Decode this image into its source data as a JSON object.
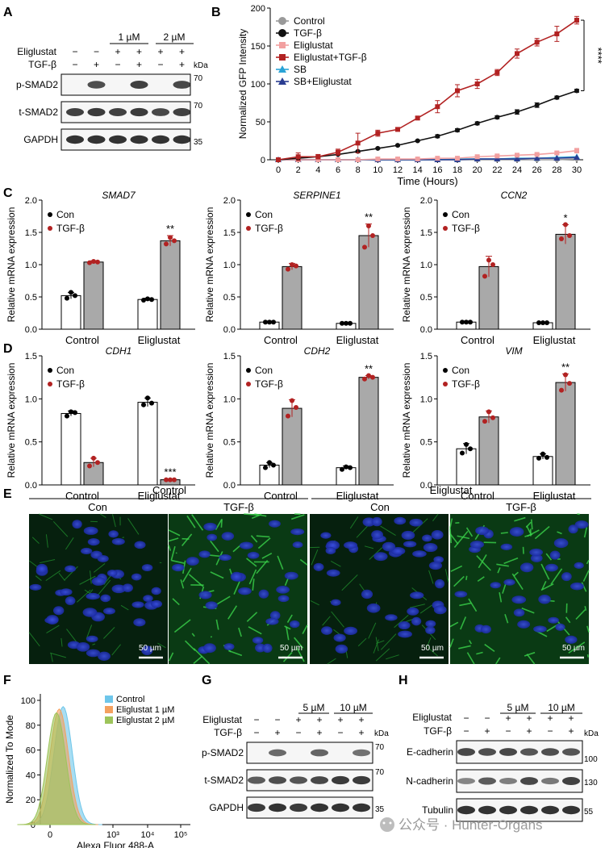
{
  "panel_letters": [
    "A",
    "B",
    "C",
    "D",
    "E",
    "F",
    "G",
    "H"
  ],
  "units": {
    "kda": "kDa",
    "scalebar": "50 µm"
  },
  "panelA": {
    "conc": [
      "1 µM",
      "2 µM"
    ],
    "row_labels": [
      "Eliglustat",
      "TGF-β"
    ],
    "eli_signs": [
      "−",
      "−",
      "+",
      "+",
      "+",
      "+"
    ],
    "tgf_signs": [
      "−",
      "+",
      "−",
      "+",
      "−",
      "+"
    ],
    "bands": [
      "p-SMAD2",
      "t-SMAD2",
      "GAPDH"
    ],
    "markers": [
      "70",
      "70",
      "35"
    ]
  },
  "panelG": {
    "conc": [
      "5 µM",
      "10 µM"
    ],
    "row_labels": [
      "Eliglustat",
      "TGF-β"
    ],
    "eli_signs": [
      "−",
      "−",
      "+",
      "+",
      "+",
      "+"
    ],
    "tgf_signs": [
      "−",
      "+",
      "−",
      "+",
      "−",
      "+"
    ],
    "bands": [
      "p-SMAD2",
      "t-SMAD2",
      "GAPDH"
    ],
    "markers": [
      "70",
      "70",
      "35"
    ]
  },
  "panelH": {
    "conc": [
      "5 µM",
      "10 µM"
    ],
    "row_labels": [
      "Eliglustat",
      "TGF-β"
    ],
    "eli_signs": [
      "−",
      "−",
      "+",
      "+",
      "+",
      "+"
    ],
    "tgf_signs": [
      "−",
      "+",
      "−",
      "+",
      "−",
      "+"
    ],
    "bands": [
      "E-cadherin",
      "N-cadherin",
      "Tubulin"
    ],
    "markers": [
      "100",
      "130",
      "55"
    ]
  },
  "panelE": {
    "groups": [
      "Control",
      "Eliglustat"
    ],
    "subs": [
      "Con",
      "TGF-β",
      "Con",
      "TGF-β"
    ]
  },
  "watermark": "公众号 · Hunter-Organs",
  "chart_data": [
    {
      "panel": "B",
      "type": "line",
      "xlabel": "Time (Hours)",
      "ylabel": "Normalized GFP Intensity",
      "x": [
        0,
        2,
        4,
        6,
        8,
        10,
        12,
        14,
        16,
        18,
        20,
        22,
        24,
        26,
        28,
        30
      ],
      "xlim": [
        0,
        30
      ],
      "ylim": [
        0,
        200
      ],
      "xticks": [
        0,
        2,
        4,
        6,
        8,
        10,
        12,
        14,
        16,
        18,
        20,
        22,
        24,
        26,
        28,
        30
      ],
      "yticks": [
        0,
        50,
        100,
        150,
        200
      ],
      "significance": "****",
      "series": [
        {
          "name": "Control",
          "color": "#9a9a9a",
          "marker": "circle",
          "values": [
            0,
            0,
            0,
            0,
            0,
            0,
            0,
            0,
            0,
            0,
            0,
            0,
            0,
            0,
            0,
            1
          ]
        },
        {
          "name": "TGF-β",
          "color": "#111111",
          "marker": "circle",
          "values": [
            0,
            2,
            4,
            7,
            11,
            15,
            19,
            25,
            31,
            39,
            48,
            56,
            63,
            72,
            82,
            91
          ],
          "err": [
            1,
            1,
            1,
            1,
            1,
            1,
            1,
            1,
            2,
            2,
            2,
            2,
            3,
            3,
            2,
            2
          ]
        },
        {
          "name": "Eliglustat",
          "color": "#f2a0a0",
          "marker": "square",
          "values": [
            0,
            0,
            0,
            0,
            0,
            1,
            1,
            1,
            2,
            2,
            4,
            5,
            6,
            7,
            9,
            12
          ],
          "err": [
            0,
            0,
            0,
            0,
            0,
            0,
            0,
            0,
            0,
            0,
            1,
            1,
            1,
            1,
            2,
            3
          ]
        },
        {
          "name": "Eliglustat+TGF-β",
          "color": "#b22222",
          "marker": "square",
          "values": [
            0,
            4,
            4,
            10,
            22,
            35,
            40,
            55,
            70,
            91,
            100,
            115,
            140,
            155,
            166,
            184
          ],
          "err": [
            0,
            5,
            3,
            4,
            13,
            4,
            2,
            2,
            8,
            8,
            6,
            4,
            6,
            5,
            10,
            5
          ]
        },
        {
          "name": "SB",
          "color": "#29a3d6",
          "marker": "triangle",
          "values": [
            0,
            0,
            0,
            0,
            0,
            0,
            0,
            0,
            0,
            1,
            1,
            1,
            2,
            2,
            3,
            4
          ]
        },
        {
          "name": "SB+Eliglustat",
          "color": "#2b3d91",
          "marker": "triangle",
          "values": [
            0,
            0,
            0,
            0,
            0,
            0,
            0,
            0,
            0,
            0,
            1,
            1,
            1,
            2,
            2,
            3
          ]
        }
      ]
    },
    {
      "panel": "C",
      "gene": "SMAD7",
      "type": "bar",
      "categories": [
        "Control",
        "Eliglustat"
      ],
      "ylabel": "Relative mRNA expression",
      "ylim": [
        0,
        2.0
      ],
      "yticks": [
        "0.0",
        "0.5",
        "1.0",
        "1.5",
        "2.0"
      ],
      "series": [
        {
          "name": "Con",
          "values": [
            0.52,
            0.46
          ],
          "err": [
            0.05,
            0.02
          ],
          "points": [
            [
              0.48,
              0.57,
              0.52
            ],
            [
              0.45,
              0.47,
              0.46
            ]
          ]
        },
        {
          "name": "TGF-β",
          "values": [
            1.04,
            1.37
          ],
          "err": [
            0.02,
            0.08
          ],
          "points": [
            [
              1.03,
              1.05,
              1.04
            ],
            [
              1.32,
              1.42,
              1.37
            ]
          ]
        }
      ],
      "sig": [
        "",
        "**"
      ]
    },
    {
      "panel": "C",
      "gene": "SERPINE1",
      "type": "bar",
      "categories": [
        "Control",
        "Eliglustat"
      ],
      "ylabel": "Relative mRNA expression",
      "ylim": [
        0,
        2.0
      ],
      "yticks": [
        "0.0",
        "0.5",
        "1.0",
        "1.5",
        "2.0"
      ],
      "series": [
        {
          "name": "Con",
          "values": [
            0.11,
            0.09
          ],
          "err": [
            0.01,
            0.01
          ],
          "points": [
            [
              0.11,
              0.11,
              0.11
            ],
            [
              0.09,
              0.09,
              0.09
            ]
          ]
        },
        {
          "name": "TGF-β",
          "values": [
            0.97,
            1.45
          ],
          "err": [
            0.05,
            0.18
          ],
          "points": [
            [
              0.93,
              1.0,
              0.98
            ],
            [
              1.27,
              1.6,
              1.45
            ]
          ]
        }
      ],
      "sig": [
        "",
        "**"
      ]
    },
    {
      "panel": "C",
      "gene": "CCN2",
      "type": "bar",
      "categories": [
        "Control",
        "Eliglustat"
      ],
      "ylabel": "Relative mRNA expression",
      "ylim": [
        0,
        2.0
      ],
      "yticks": [
        "0.0",
        "0.5",
        "1.0",
        "1.5",
        "2.0"
      ],
      "series": [
        {
          "name": "Con",
          "values": [
            0.11,
            0.1
          ],
          "err": [
            0.01,
            0.01
          ],
          "points": [
            [
              0.11,
              0.11,
              0.11
            ],
            [
              0.1,
              0.1,
              0.1
            ]
          ]
        },
        {
          "name": "TGF-β",
          "values": [
            0.97,
            1.47
          ],
          "err": [
            0.16,
            0.15
          ],
          "points": [
            [
              0.82,
              1.07,
              1.0
            ],
            [
              1.4,
              1.62,
              1.45
            ]
          ]
        }
      ],
      "sig": [
        "",
        "*"
      ]
    },
    {
      "panel": "D",
      "gene": "CDH1",
      "type": "bar",
      "categories": [
        "Control",
        "Eliglustat"
      ],
      "ylabel": "Relative mRNA expression",
      "ylim": [
        0,
        1.5
      ],
      "yticks": [
        "0.0",
        "0.5",
        "1.0",
        "1.5"
      ],
      "series": [
        {
          "name": "Con",
          "values": [
            0.83,
            0.96
          ],
          "err": [
            0.03,
            0.05
          ],
          "points": [
            [
              0.8,
              0.85,
              0.84
            ],
            [
              0.93,
              1.01,
              0.95
            ]
          ]
        },
        {
          "name": "TGF-β",
          "values": [
            0.26,
            0.06
          ],
          "err": [
            0.05,
            0.01
          ],
          "points": [
            [
              0.22,
              0.31,
              0.26
            ],
            [
              0.06,
              0.06,
              0.06
            ]
          ]
        }
      ],
      "sig": [
        "",
        "***"
      ]
    },
    {
      "panel": "D",
      "gene": "CDH2",
      "type": "bar",
      "categories": [
        "Control",
        "Eliglustat"
      ],
      "ylabel": "Relative mRNA expression",
      "ylim": [
        0,
        1.5
      ],
      "yticks": [
        "0.0",
        "0.5",
        "1.0",
        "1.5"
      ],
      "series": [
        {
          "name": "Con",
          "values": [
            0.23,
            0.2
          ],
          "err": [
            0.03,
            0.02
          ],
          "points": [
            [
              0.2,
              0.26,
              0.23
            ],
            [
              0.18,
              0.21,
              0.2
            ]
          ]
        },
        {
          "name": "TGF-β",
          "values": [
            0.89,
            1.25
          ],
          "err": [
            0.1,
            0.02
          ],
          "points": [
            [
              0.8,
              0.98,
              0.9
            ],
            [
              1.23,
              1.27,
              1.25
            ]
          ]
        }
      ],
      "sig": [
        "",
        "**"
      ]
    },
    {
      "panel": "D",
      "gene": "VIM",
      "type": "bar",
      "categories": [
        "Control",
        "Eliglustat"
      ],
      "ylabel": "Relative mRNA expression",
      "ylim": [
        0,
        1.5
      ],
      "yticks": [
        "0.0",
        "0.5",
        "1.0",
        "1.5"
      ],
      "series": [
        {
          "name": "Con",
          "values": [
            0.42,
            0.33
          ],
          "err": [
            0.06,
            0.03
          ],
          "points": [
            [
              0.37,
              0.47,
              0.42
            ],
            [
              0.31,
              0.36,
              0.32
            ]
          ]
        },
        {
          "name": "TGF-β",
          "values": [
            0.79,
            1.19
          ],
          "err": [
            0.07,
            0.1
          ],
          "points": [
            [
              0.74,
              0.85,
              0.78
            ],
            [
              1.1,
              1.28,
              1.18
            ]
          ]
        }
      ],
      "sig": [
        "",
        "**"
      ]
    },
    {
      "panel": "F",
      "type": "area",
      "xlabel": "Alexa Fluor 488-A",
      "ylabel": "Normalized To Mode",
      "yticks": [
        "0",
        "20",
        "40",
        "60",
        "80",
        "100"
      ],
      "xticks": [
        "0",
        "10³",
        "10⁴",
        "10⁵"
      ],
      "series": [
        {
          "name": "Control",
          "color": "#6ec6ea",
          "peak_log10": 2.55,
          "peak_value": 95
        },
        {
          "name": "Eliglustat 1 µM",
          "color": "#f4a15f",
          "peak_log10": 2.45,
          "peak_value": 93
        },
        {
          "name": "Eliglustat 2 µM",
          "color": "#9dc45a",
          "peak_log10": 2.38,
          "peak_value": 90
        }
      ]
    }
  ]
}
